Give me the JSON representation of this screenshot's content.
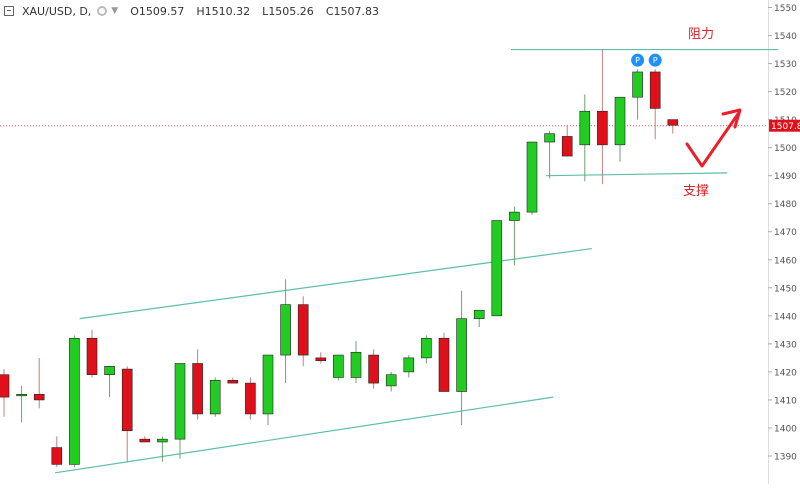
{
  "header": {
    "symbol": "XAU/USD, D,",
    "ohlc": [
      {
        "key": "O",
        "value": "1509.57"
      },
      {
        "key": "H",
        "value": "1510.32"
      },
      {
        "key": "L",
        "value": "1505.26"
      },
      {
        "key": "C",
        "value": "1507.83"
      }
    ]
  },
  "annotations": {
    "resistance_label": "阻力",
    "support_label": "支撑",
    "pivot_marker": "P"
  },
  "colors": {
    "up": "#22cc22",
    "down": "#e0101a",
    "trendline": "#5dbfa8",
    "price_line": "#e05050",
    "pivot": "#1e90ff",
    "arrow": "#e8202a",
    "label_text": "#e0202a"
  },
  "chart_data": {
    "type": "candlestick",
    "price_axis": {
      "min": 1385,
      "max": 1555,
      "ticks": [
        1390,
        1400,
        1410,
        1420,
        1430,
        1440,
        1450,
        1460,
        1470,
        1480,
        1490,
        1500,
        1510,
        1520,
        1530,
        1540,
        1550
      ],
      "last_price": "1507.83"
    },
    "candles": [
      {
        "o": 1419,
        "h": 1421,
        "l": 1404,
        "c": 1411
      },
      {
        "o": 1412,
        "h": 1415,
        "l": 1402,
        "c": 1412
      },
      {
        "o": 1412,
        "h": 1425,
        "l": 1407,
        "c": 1410
      },
      {
        "o": 1393,
        "h": 1397,
        "l": 1386,
        "c": 1387
      },
      {
        "o": 1387,
        "h": 1433,
        "l": 1386,
        "c": 1432
      },
      {
        "o": 1432,
        "h": 1435,
        "l": 1418,
        "c": 1419
      },
      {
        "o": 1419,
        "h": 1422,
        "l": 1411,
        "c": 1422
      },
      {
        "o": 1421,
        "h": 1422,
        "l": 1388,
        "c": 1399
      },
      {
        "o": 1396,
        "h": 1397,
        "l": 1395,
        "c": 1395
      },
      {
        "o": 1395,
        "h": 1397,
        "l": 1388,
        "c": 1396
      },
      {
        "o": 1396,
        "h": 1423,
        "l": 1389,
        "c": 1423
      },
      {
        "o": 1423,
        "h": 1428,
        "l": 1403,
        "c": 1405
      },
      {
        "o": 1405,
        "h": 1418,
        "l": 1404,
        "c": 1417
      },
      {
        "o": 1417,
        "h": 1418,
        "l": 1416,
        "c": 1416
      },
      {
        "o": 1416,
        "h": 1418,
        "l": 1403,
        "c": 1405
      },
      {
        "o": 1405,
        "h": 1426,
        "l": 1401,
        "c": 1426
      },
      {
        "o": 1426,
        "h": 1453,
        "l": 1416,
        "c": 1444
      },
      {
        "o": 1444,
        "h": 1447,
        "l": 1422,
        "c": 1426
      },
      {
        "o": 1425,
        "h": 1427,
        "l": 1423,
        "c": 1424
      },
      {
        "o": 1418,
        "h": 1426,
        "l": 1417,
        "c": 1426
      },
      {
        "o": 1418,
        "h": 1431,
        "l": 1416,
        "c": 1427
      },
      {
        "o": 1426,
        "h": 1428,
        "l": 1414,
        "c": 1416
      },
      {
        "o": 1415,
        "h": 1420,
        "l": 1413,
        "c": 1419
      },
      {
        "o": 1420,
        "h": 1426,
        "l": 1418,
        "c": 1425
      },
      {
        "o": 1425,
        "h": 1433,
        "l": 1423,
        "c": 1432
      },
      {
        "o": 1432,
        "h": 1434,
        "l": 1413,
        "c": 1413
      },
      {
        "o": 1413,
        "h": 1449,
        "l": 1401,
        "c": 1439
      },
      {
        "o": 1439,
        "h": 1442,
        "l": 1436,
        "c": 1442
      },
      {
        "o": 1440,
        "h": 1473,
        "l": 1440,
        "c": 1474
      },
      {
        "o": 1474,
        "h": 1479,
        "l": 1458,
        "c": 1477
      },
      {
        "o": 1477,
        "h": 1502,
        "l": 1476,
        "c": 1502
      },
      {
        "o": 1502,
        "h": 1506,
        "l": 1489,
        "c": 1505
      },
      {
        "o": 1504,
        "h": 1508,
        "l": 1497,
        "c": 1497
      },
      {
        "o": 1501,
        "h": 1519,
        "l": 1488,
        "c": 1513
      },
      {
        "o": 1513,
        "h": 1535,
        "l": 1487,
        "c": 1501
      },
      {
        "o": 1501,
        "h": 1518,
        "l": 1495,
        "c": 1518
      },
      {
        "o": 1518,
        "h": 1528,
        "l": 1510,
        "c": 1527
      },
      {
        "o": 1527,
        "h": 1528,
        "l": 1503,
        "c": 1514
      },
      {
        "o": 1510,
        "h": 1510,
        "l": 1505,
        "c": 1508
      }
    ],
    "pivot_highs_at": [
      36,
      37
    ],
    "trendlines": {
      "resistance": [
        {
          "i": 28.8,
          "p": 1535
        },
        {
          "i": 44.0,
          "p": 1535
        }
      ],
      "support": [
        {
          "i": 30.8,
          "p": 1490
        },
        {
          "i": 41.1,
          "p": 1491
        }
      ],
      "channel_upper": [
        {
          "i": 4.3,
          "p": 1439
        },
        {
          "i": 33.4,
          "p": 1464
        }
      ],
      "channel_lower": [
        {
          "i": 2.9,
          "p": 1384
        },
        {
          "i": 31.2,
          "p": 1411
        }
      ]
    }
  }
}
